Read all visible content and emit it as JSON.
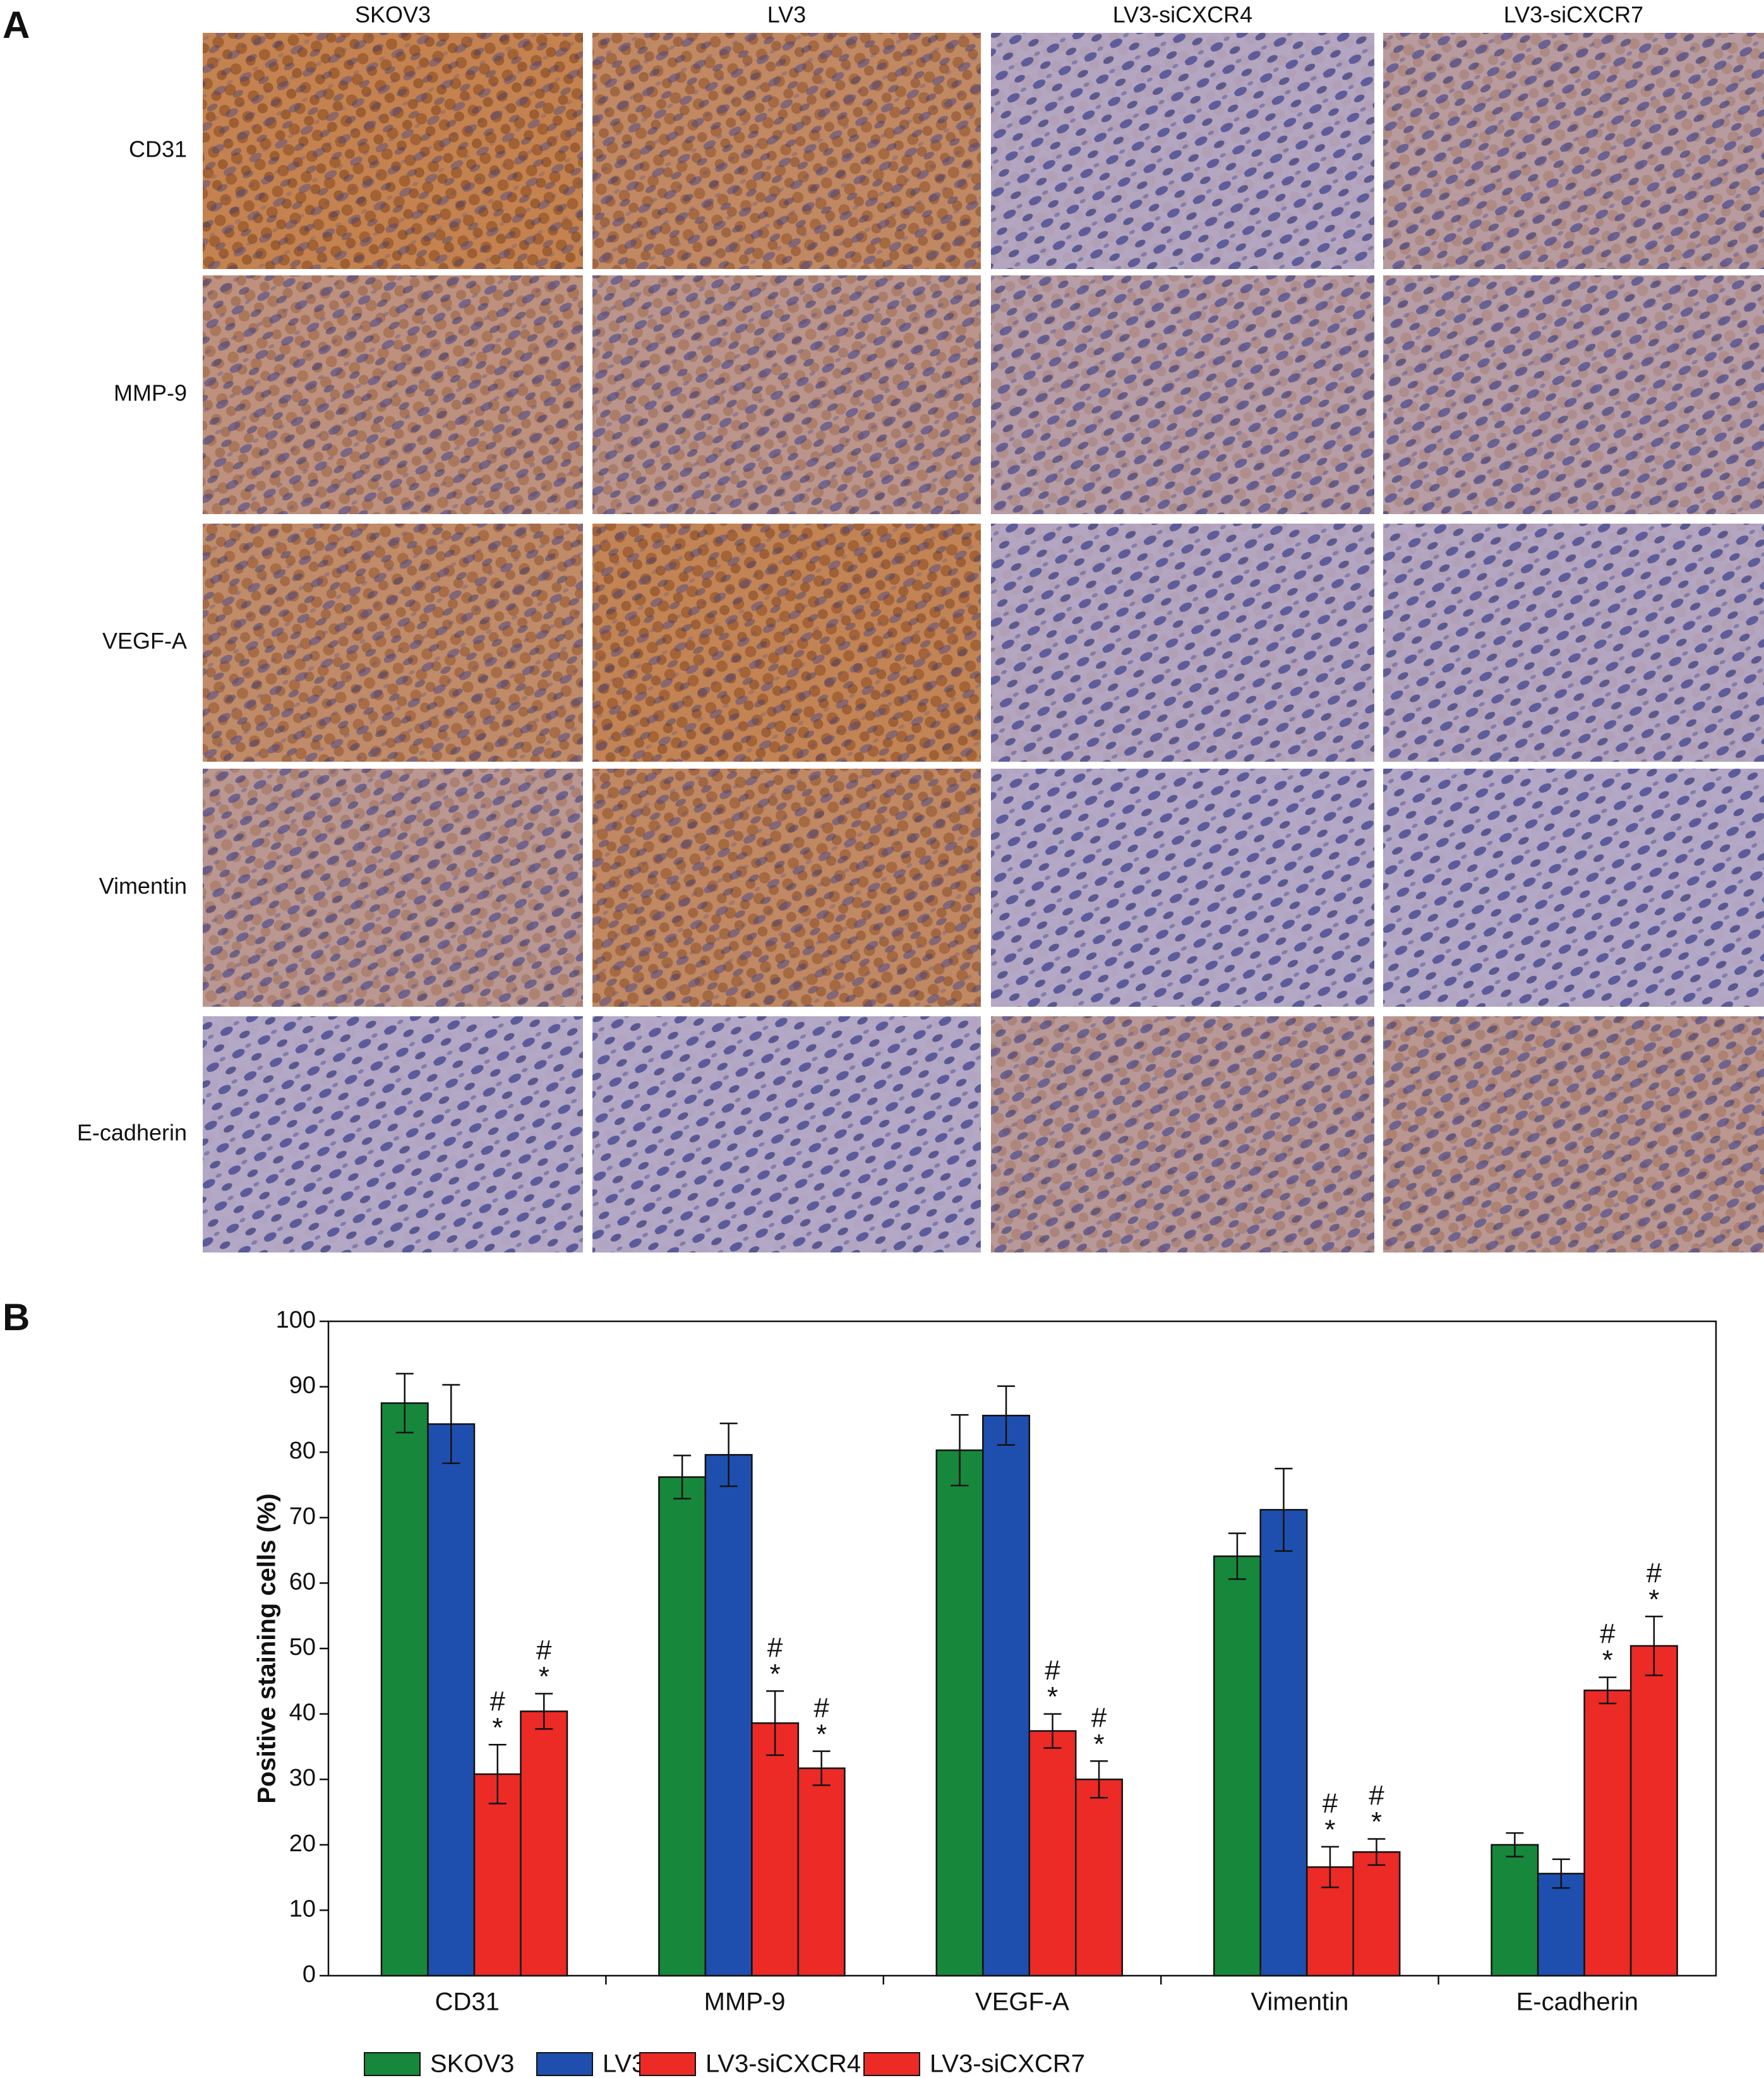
{
  "panel_labels": [
    "A",
    "B"
  ],
  "micrographs": {
    "columns": [
      "SKOV3",
      "LV3",
      "LV3-siCXCR4",
      "LV3-siCXCR7"
    ],
    "rows": [
      "CD31",
      "MMP-9",
      "VEGF-A",
      "Vimentin",
      "E-cadherin"
    ]
  },
  "chart_data": {
    "type": "bar",
    "ylabel": "Positive staining cells (%)",
    "categories": [
      "CD31",
      "MMP-9",
      "VEGF-A",
      "Vimentin",
      "E-cadherin"
    ],
    "series": [
      {
        "name": "SKOV3",
        "color": "#17873c",
        "values": [
          87.5,
          76.2,
          80.3,
          64.1,
          20.0
        ],
        "errors": [
          4.5,
          3.3,
          5.4,
          3.5,
          1.8
        ]
      },
      {
        "name": "LV3",
        "color": "#1f4fae",
        "values": [
          84.3,
          79.6,
          85.6,
          71.2,
          15.6
        ],
        "errors": [
          6.0,
          4.8,
          4.5,
          6.3,
          2.2
        ]
      },
      {
        "name": "LV3-siCXCR4",
        "color": "#ec2a26",
        "values": [
          30.8,
          38.6,
          37.4,
          16.6,
          43.6
        ],
        "errors": [
          4.5,
          4.9,
          2.6,
          3.1,
          2.0
        ],
        "significance": [
          "#",
          "*"
        ]
      },
      {
        "name": "LV3-siCXCR7",
        "color": "#ec2a26",
        "values": [
          40.4,
          31.7,
          30.0,
          18.9,
          50.4
        ],
        "errors": [
          2.7,
          2.6,
          2.8,
          2.0,
          4.5
        ],
        "significance": [
          "#",
          "*"
        ]
      }
    ],
    "ylim": [
      0,
      100
    ],
    "yticks": [
      0,
      10,
      20,
      30,
      40,
      50,
      60,
      70,
      80,
      90,
      100
    ],
    "legend": "bottom"
  }
}
